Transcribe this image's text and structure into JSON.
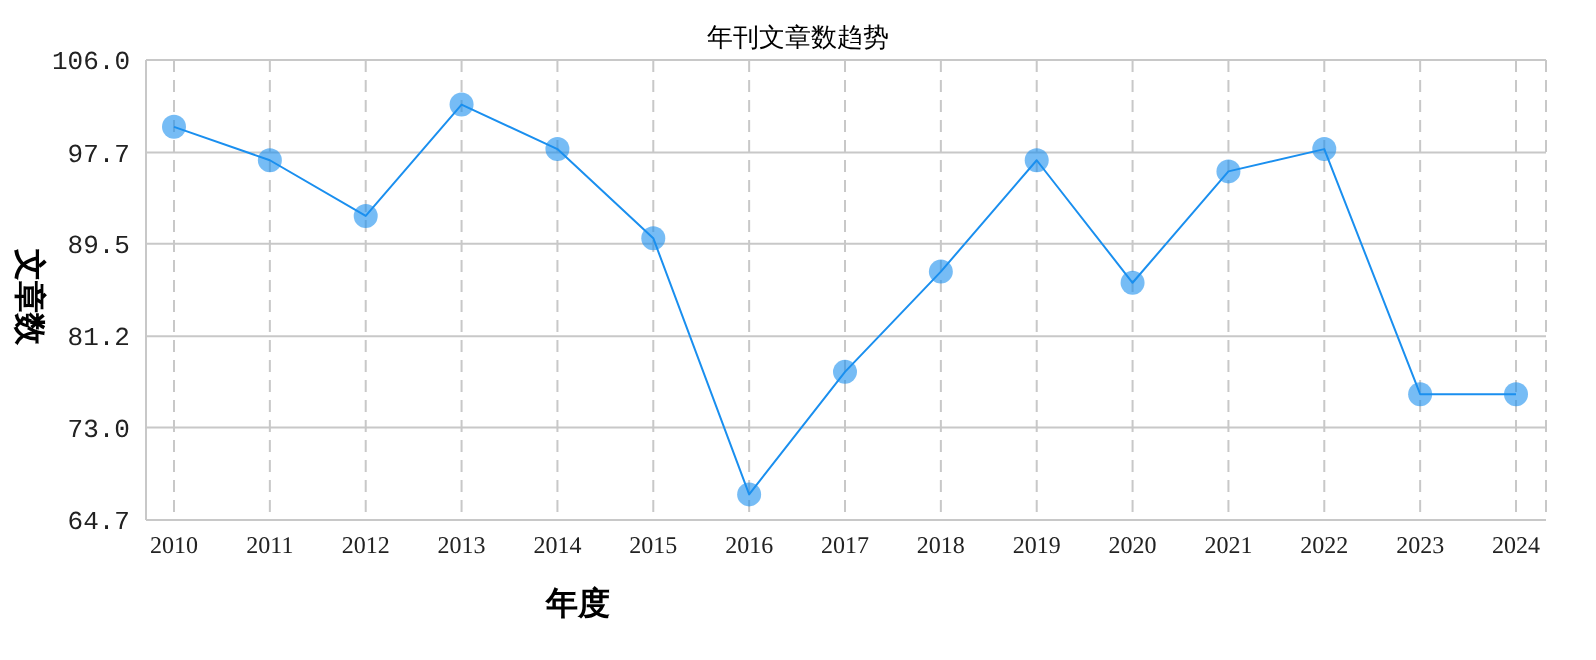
{
  "chart_data": {
    "type": "line",
    "title": "年刊文章数趋势",
    "xlabel": "年度",
    "ylabel": "文章数",
    "categories": [
      "2010",
      "2011",
      "2012",
      "2013",
      "2014",
      "2015",
      "2016",
      "2017",
      "2018",
      "2019",
      "2020",
      "2021",
      "2022",
      "2023",
      "2024"
    ],
    "series": [
      {
        "color": "#1a8fef",
        "values": [
          100,
          97,
          92,
          102,
          98,
          90,
          67,
          78,
          87,
          97,
          86,
          96,
          98,
          76,
          76
        ]
      }
    ],
    "ylim": [
      64.7,
      106.0
    ],
    "yticks": [
      {
        "value": 64.7,
        "label": "64.7"
      },
      {
        "value": 73.0,
        "label": "73.0"
      },
      {
        "value": 81.2,
        "label": "81.2"
      },
      {
        "value": 89.5,
        "label": "89.5"
      },
      {
        "value": 97.7,
        "label": "97.7"
      },
      {
        "value": 106.0,
        "label": "106.0"
      }
    ],
    "grid": true,
    "marker": "circle",
    "line_style": "solid"
  }
}
